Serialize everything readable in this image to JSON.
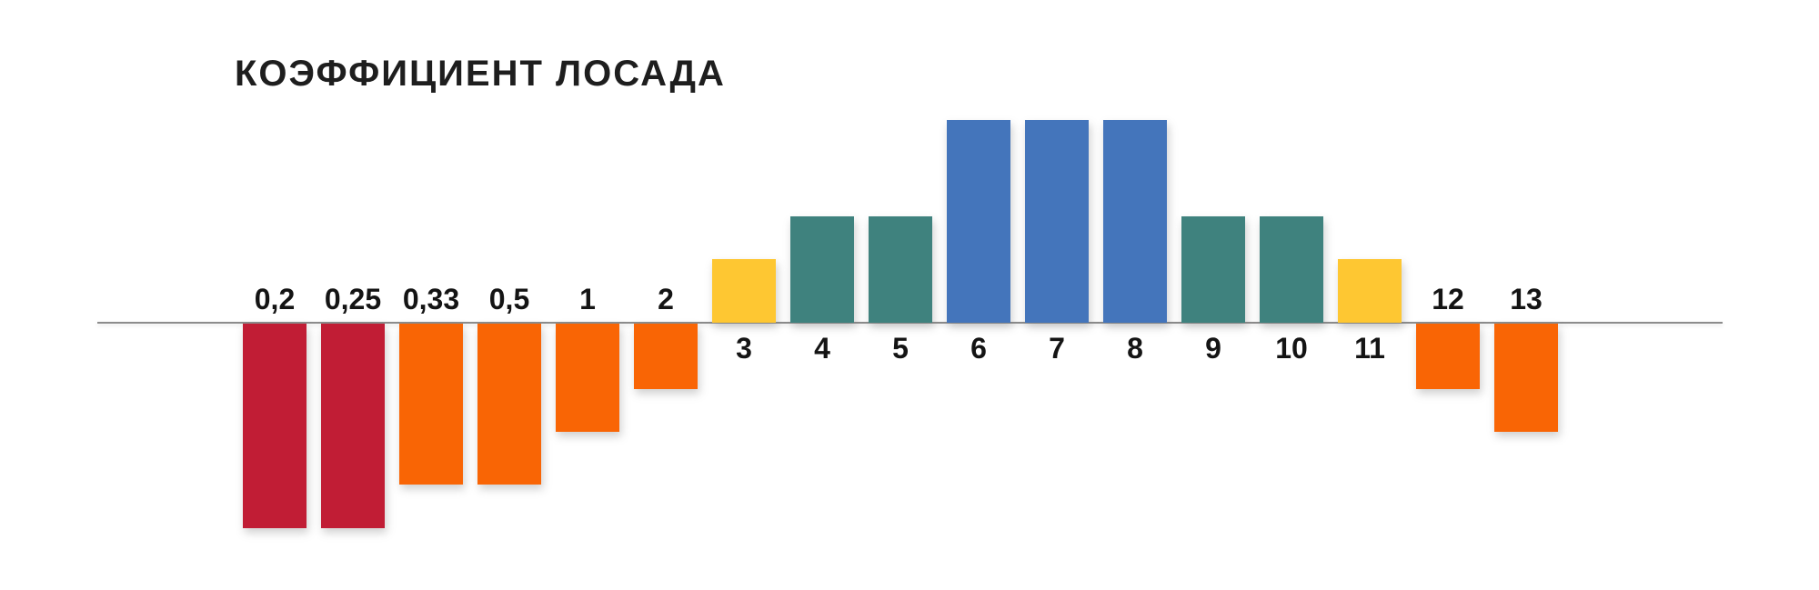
{
  "page": {
    "background": "#FFFFFF"
  },
  "title": "КОЭФФИЦИЕНТ ЛОСАДА",
  "chart_data": {
    "type": "bar",
    "title": "КОЭФФИЦИЕНТ ЛОСАДА",
    "orientation": "vertical",
    "grid": false,
    "legend": false,
    "numeric_axis_shown": false,
    "baseline_value": 0,
    "categories": [
      "0,2",
      "0,25",
      "0,33",
      "0,5",
      "1",
      "2",
      "3",
      "4",
      "5",
      "6",
      "7",
      "8",
      "9",
      "10",
      "11",
      "12",
      "13"
    ],
    "values": [
      -225,
      -225,
      -177,
      -177,
      -119,
      -72,
      70,
      117,
      117,
      223,
      223,
      223,
      117,
      117,
      70,
      -72,
      -119
    ],
    "value_unit": "relative bar height in px (chart has no labeled numeric axis)",
    "bar_colors": [
      "#C11D35",
      "#C11D35",
      "#F96505",
      "#F96505",
      "#F96505",
      "#F96505",
      "#FEC732",
      "#3F827E",
      "#3F827E",
      "#4475BB",
      "#4475BB",
      "#4475BB",
      "#3F827E",
      "#3F827E",
      "#FEC732",
      "#F96505",
      "#F96505"
    ],
    "color_legend": {
      "crimson": "#C11D35",
      "orange": "#F96505",
      "yellow": "#FEC732",
      "teal": "#3F827E",
      "blue": "#4475BB"
    },
    "label_rule": "labels of downward (negative) bars sit above the axis line; labels of upward (positive) bars sit below the axis line",
    "axis_line_color": "#8C8C8C",
    "label_text_color": "#141414",
    "title_text_color": "#1E1E1E"
  }
}
